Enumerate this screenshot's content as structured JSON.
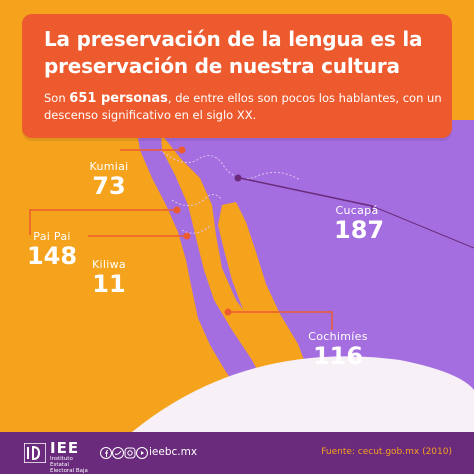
{
  "header": {
    "title": "La preservación de la lengua es la preservación de nuestra cultura",
    "subtitle_number": "651 personas",
    "subtitle_before": "Son ",
    "subtitle_after": ", de entre ellos son pocos los hablantes, con un descenso significativo en el siglo XX."
  },
  "languages": [
    {
      "name": "Kumiai",
      "count": "73"
    },
    {
      "name": "Pai Pai",
      "count": "148"
    },
    {
      "name": "Kiliwa",
      "count": "11"
    },
    {
      "name": "Cucapá",
      "count": "187"
    },
    {
      "name": "Cochimíes",
      "count": "116"
    }
  ],
  "footer": {
    "logo_name": "IEE",
    "logo_sub": "Instituto Estatal Electoral Baja California",
    "website": "ieebc.mx",
    "source": "Fuente: cecut.gob.mx (2010)",
    "social_icons": [
      "facebook-icon",
      "twitter-icon",
      "instagram-icon",
      "youtube-icon"
    ]
  },
  "colors": {
    "background": "#f5a21c",
    "title_box": "#ed5a2e",
    "land": "#a56ee0",
    "footer": "#6a2b7c",
    "ocean_arc": "#f7f0f7"
  }
}
